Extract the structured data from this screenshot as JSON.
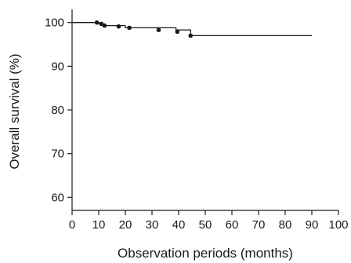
{
  "chart_data": {
    "type": "line",
    "step": true,
    "title": "",
    "xlabel": "Observation periods (months)",
    "ylabel": "Overall survival (%)",
    "xlim": [
      0,
      100
    ],
    "ylim": [
      57,
      103
    ],
    "x_ticks": [
      0,
      10,
      20,
      30,
      40,
      50,
      60,
      70,
      80,
      90,
      100
    ],
    "y_ticks": [
      60,
      70,
      80,
      90,
      100
    ],
    "grid": false,
    "series": [
      {
        "steps": [
          {
            "x": 0,
            "y": 100
          },
          {
            "x": 10,
            "y": 100
          },
          {
            "x": 10,
            "y": 99.7
          },
          {
            "x": 11.5,
            "y": 99.7
          },
          {
            "x": 11.5,
            "y": 99.3
          },
          {
            "x": 20,
            "y": 99.3
          },
          {
            "x": 20,
            "y": 98.8
          },
          {
            "x": 39,
            "y": 98.8
          },
          {
            "x": 39,
            "y": 98.3
          },
          {
            "x": 44.5,
            "y": 98.3
          },
          {
            "x": 44.5,
            "y": 97
          },
          {
            "x": 90,
            "y": 97
          }
        ],
        "censored": [
          {
            "x": 9.3,
            "y": 100
          },
          {
            "x": 11,
            "y": 99.7
          },
          {
            "x": 12.2,
            "y": 99.3
          },
          {
            "x": 17.5,
            "y": 99.1
          },
          {
            "x": 21.5,
            "y": 98.8
          },
          {
            "x": 32.5,
            "y": 98.3
          },
          {
            "x": 39.5,
            "y": 97.9
          },
          {
            "x": 44.5,
            "y": 97
          }
        ]
      }
    ]
  }
}
